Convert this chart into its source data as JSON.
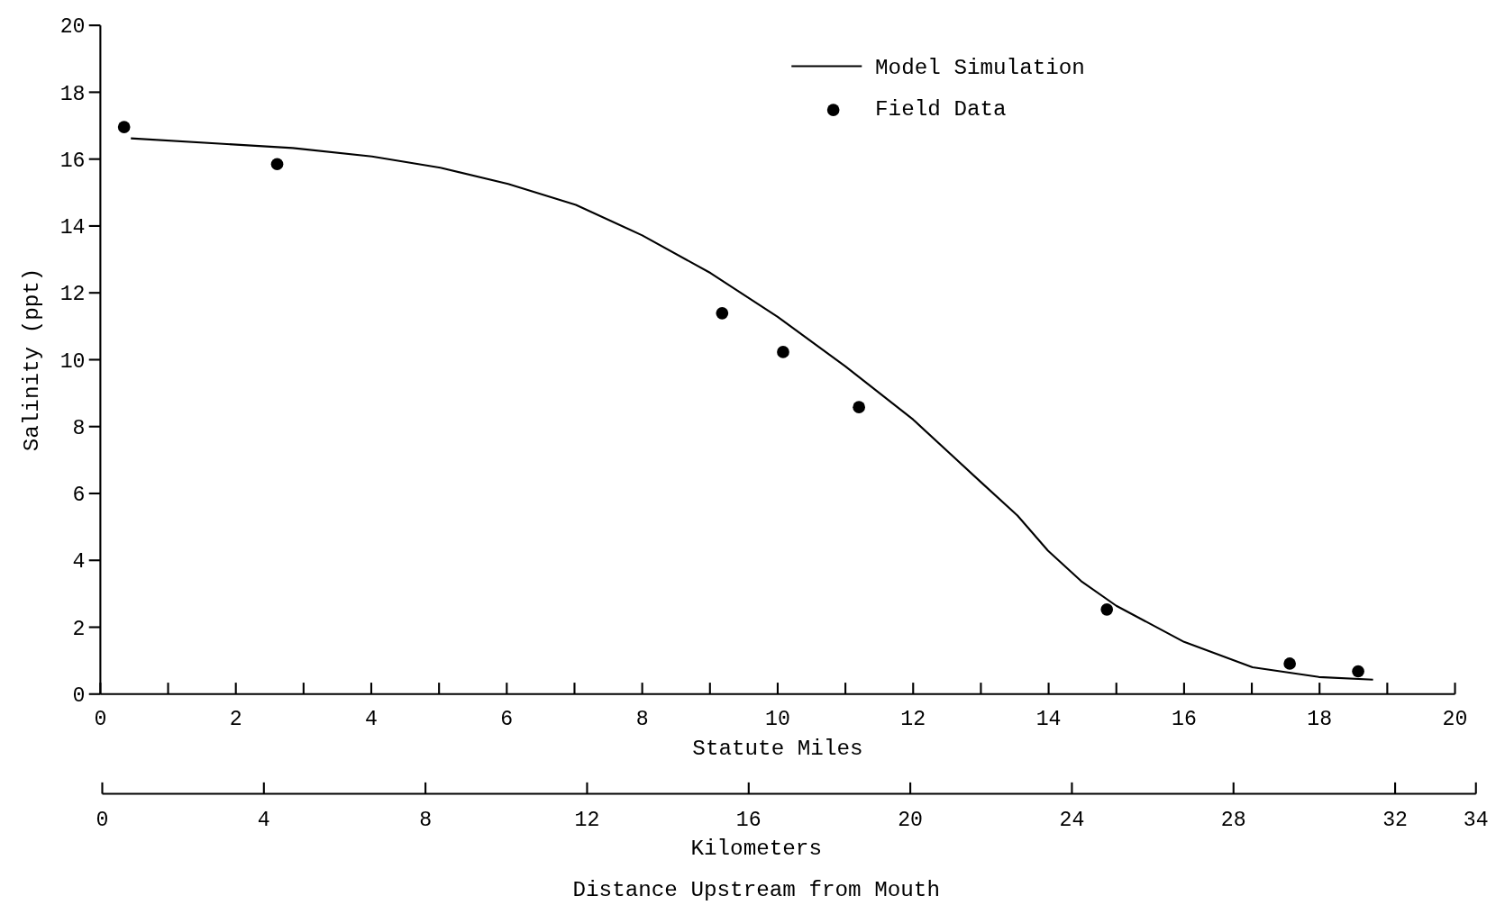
{
  "chart_data": {
    "type": "line",
    "ylabel": "Salinity (ppt)",
    "xlabel": "Statute Miles",
    "x2label": "Kilometers",
    "annotations": [
      "Distance Upstream from Mouth"
    ],
    "xlim": [
      0,
      20
    ],
    "xticks": [
      0,
      {
        "value": 1,
        "label": null
      },
      2,
      {
        "value": 3,
        "label": null
      },
      4,
      {
        "value": 5,
        "label": null
      },
      6,
      {
        "value": 7,
        "label": null
      },
      8,
      {
        "value": 9,
        "label": null
      },
      10,
      {
        "value": 11,
        "label": null
      },
      12,
      {
        "value": 13,
        "label": null
      },
      14,
      {
        "value": 15,
        "label": null
      },
      16,
      {
        "value": 17,
        "label": null
      },
      18,
      {
        "value": 19,
        "label": null
      },
      20
    ],
    "x2lim": [
      0,
      34
    ],
    "x2ticks": [
      0,
      4,
      8,
      12,
      16,
      20,
      24,
      28,
      32,
      34
    ],
    "ylim": [
      0,
      20
    ],
    "yticks": [
      0,
      2,
      4,
      6,
      8,
      10,
      12,
      14,
      16,
      18,
      20
    ],
    "grid": false,
    "legend": "top right",
    "series": [
      {
        "name": "Model Simulation",
        "type": "line",
        "color": "#000000",
        "marker": "none",
        "line_style": "solid",
        "x": [
          0.45,
          2.84,
          4.01,
          5.02,
          6.02,
          7.02,
          8.0,
          9.01,
          10.0,
          11.0,
          12.0,
          13.0,
          13.54,
          13.99,
          14.48,
          15.0,
          16.0,
          17.01,
          17.99,
          18.79
        ],
        "values": [
          16.62,
          16.33,
          16.08,
          15.74,
          15.26,
          14.63,
          13.72,
          12.59,
          11.28,
          9.8,
          8.21,
          6.34,
          5.34,
          4.29,
          3.38,
          2.64,
          1.56,
          0.8,
          0.51,
          0.43
        ]
      },
      {
        "name": "Field Data",
        "type": "scatter",
        "color": "#000000",
        "marker": "circle",
        "x": [
          0.35,
          2.61,
          9.18,
          10.08,
          11.2,
          14.86,
          17.56,
          18.57
        ],
        "values": [
          16.96,
          15.85,
          11.39,
          10.23,
          8.58,
          2.53,
          0.91,
          0.68
        ]
      }
    ]
  }
}
